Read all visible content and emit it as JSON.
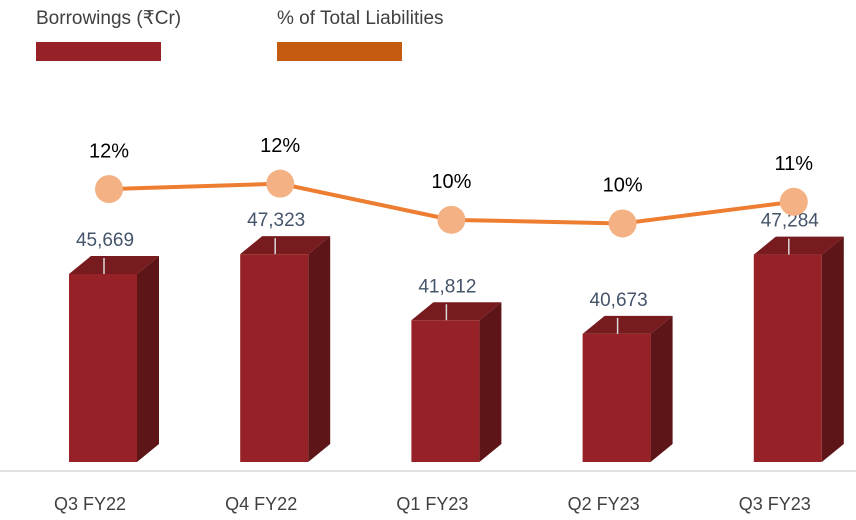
{
  "chart_data": {
    "type": "bar-line",
    "categories": [
      "Q3 FY22",
      "Q4 FY22",
      "Q1 FY23",
      "Q2 FY23",
      "Q3 FY23"
    ],
    "series": [
      {
        "name": "Borrowings (₹Cr)",
        "type": "bar",
        "color": "#962227",
        "values": [
          45669,
          47323,
          41812,
          40673,
          47284
        ],
        "value_labels": [
          "45,669",
          "47,323",
          "41,812",
          "40,673",
          "47,284"
        ]
      },
      {
        "name": "% of Total Liabilities",
        "type": "line",
        "axis": "y2",
        "color": "#ed7d31",
        "legend_color": "#c55a11",
        "marker_color": "#f4b183",
        "values": [
          11.8,
          12.1,
          10.1,
          9.9,
          11.1
        ],
        "value_labels": [
          "12%",
          "12%",
          "10%",
          "10%",
          "11%"
        ]
      }
    ],
    "ylim": [
      30000,
      55000
    ],
    "y2lim": [
      -3.3,
      13.3
    ],
    "grid": false
  }
}
